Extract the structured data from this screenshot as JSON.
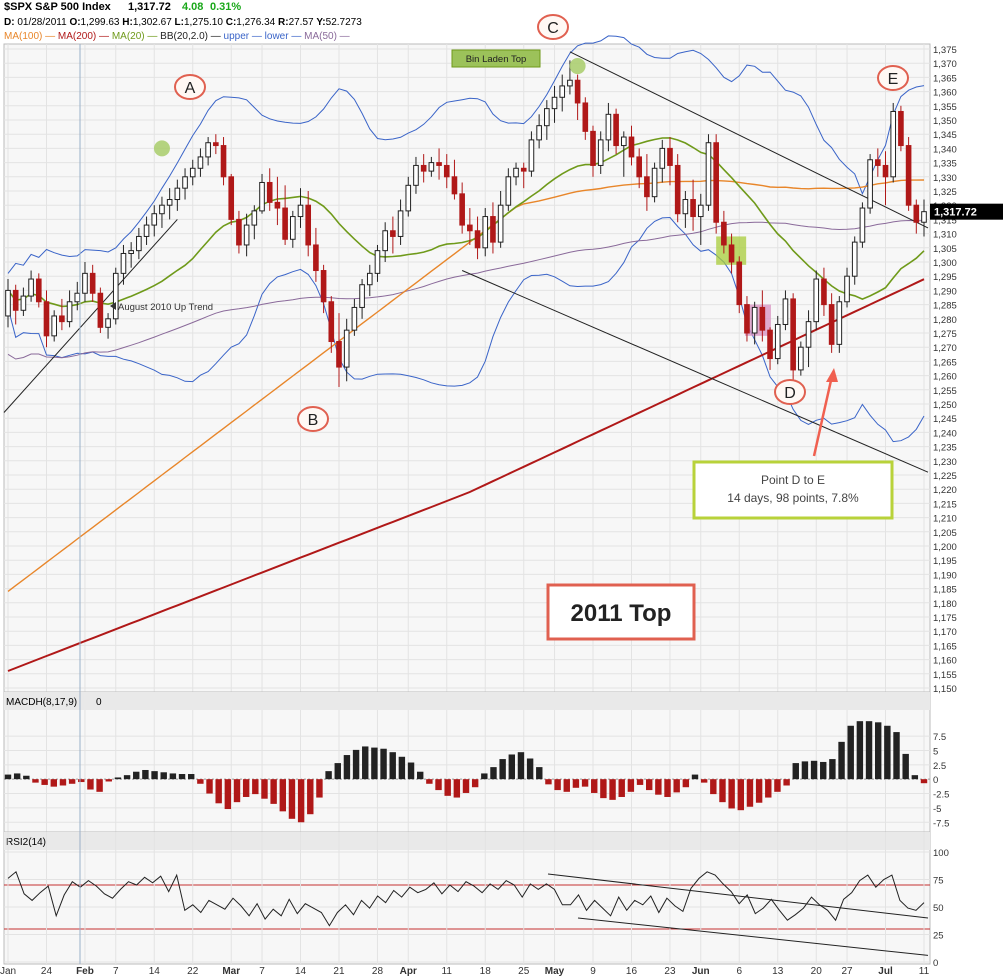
{
  "header": {
    "symbol": "$SPX S&P 500 Index",
    "last": "1,317.72",
    "change": "4.08",
    "change_pct": "0.31%",
    "ohlc_line": [
      {
        "k": "D:",
        "v": " 01/28/2011 "
      },
      {
        "k": "O:",
        "v": "1,299.63 "
      },
      {
        "k": "H:",
        "v": "1,302.67 "
      },
      {
        "k": "L:",
        "v": "1,275.10 "
      },
      {
        "k": "C:",
        "v": "1,276.34 "
      },
      {
        "k": "R:",
        "v": "27.57 "
      },
      {
        "k": "Y:",
        "v": "52.7273"
      }
    ],
    "legend": [
      {
        "label": "MA(100)",
        "color": "#e8862a"
      },
      {
        "label": "MA(200)",
        "color": "#b01818"
      },
      {
        "label": "MA(20)",
        "color": "#6f9a1a"
      },
      {
        "label": "BB(20,2.0)",
        "color": "#222222"
      },
      {
        "label": "upper",
        "color": "#3a64c8"
      },
      {
        "label": "lower",
        "color": "#3a64c8"
      },
      {
        "label": "MA(50)",
        "color": "#8a6a9a"
      }
    ]
  },
  "colors": {
    "up": "#222222",
    "down": "#b01818",
    "ma20": "#6f9a1a",
    "ma50": "#8a6a9a",
    "ma100": "#e8862a",
    "ma200": "#b01818",
    "bb": "#3a64c8",
    "grid": "#e3e3e3",
    "panel_bg": "#f7f7f7",
    "note_border": "#b8d23a",
    "title_border": "#e06050",
    "marker_border": "#e06050"
  },
  "chart_data": [
    {
      "type": "candlestick",
      "title": "$SPX S&P 500 Index",
      "ylim": [
        1150,
        1375
      ],
      "y_ticks": [
        1150,
        1155,
        1160,
        1165,
        1170,
        1175,
        1180,
        1185,
        1190,
        1195,
        1200,
        1205,
        1210,
        1215,
        1220,
        1225,
        1230,
        1235,
        1240,
        1245,
        1250,
        1255,
        1260,
        1265,
        1270,
        1275,
        1280,
        1285,
        1290,
        1295,
        1300,
        1305,
        1310,
        1315,
        1320,
        1325,
        1330,
        1335,
        1340,
        1345,
        1350,
        1355,
        1360,
        1365,
        1370,
        1375
      ],
      "x_tick_labels": [
        "Jan",
        "24",
        "Feb",
        "7",
        "14",
        "22",
        "Mar",
        "7",
        "14",
        "21",
        "28",
        "Apr",
        "11",
        "18",
        "25",
        "May",
        "9",
        "16",
        "23",
        "Jun",
        "6",
        "13",
        "20",
        "27",
        "Jul",
        "11"
      ],
      "bold_ticks": [
        "Feb",
        "Mar",
        "Apr",
        "May",
        "Jun",
        "Jul"
      ],
      "last_value_label": "1,317.72",
      "last_value": 1317.72,
      "candles": [
        [
          1281,
          1294,
          1277,
          1290
        ],
        [
          1290,
          1292,
          1278,
          1283
        ],
        [
          1283,
          1291,
          1281,
          1288
        ],
        [
          1288,
          1297,
          1286,
          1294
        ],
        [
          1294,
          1296,
          1284,
          1286
        ],
        [
          1286,
          1290,
          1270,
          1274
        ],
        [
          1274,
          1283,
          1272,
          1281
        ],
        [
          1281,
          1287,
          1276,
          1279
        ],
        [
          1279,
          1290,
          1277,
          1286
        ],
        [
          1286,
          1293,
          1283,
          1289
        ],
        [
          1289,
          1300,
          1286,
          1296
        ],
        [
          1296,
          1299,
          1286,
          1289
        ],
        [
          1289,
          1291,
          1275,
          1277
        ],
        [
          1277,
          1282,
          1273,
          1280
        ],
        [
          1280,
          1298,
          1278,
          1296
        ],
        [
          1296,
          1306,
          1292,
          1303
        ],
        [
          1303,
          1307,
          1298,
          1304
        ],
        [
          1304,
          1312,
          1301,
          1309
        ],
        [
          1309,
          1316,
          1306,
          1313
        ],
        [
          1313,
          1320,
          1309,
          1317
        ],
        [
          1317,
          1323,
          1312,
          1320
        ],
        [
          1320,
          1326,
          1315,
          1322
        ],
        [
          1322,
          1329,
          1318,
          1326
        ],
        [
          1326,
          1333,
          1322,
          1330
        ],
        [
          1330,
          1336,
          1327,
          1333
        ],
        [
          1333,
          1340,
          1330,
          1337
        ],
        [
          1337,
          1344,
          1334,
          1342
        ],
        [
          1342,
          1345,
          1338,
          1341
        ],
        [
          1341,
          1344,
          1327,
          1330
        ],
        [
          1330,
          1331,
          1313,
          1315
        ],
        [
          1315,
          1318,
          1303,
          1306
        ],
        [
          1306,
          1317,
          1302,
          1313
        ],
        [
          1313,
          1320,
          1308,
          1318
        ],
        [
          1318,
          1331,
          1317,
          1328
        ],
        [
          1328,
          1333,
          1318,
          1321
        ],
        [
          1321,
          1330,
          1313,
          1319
        ],
        [
          1319,
          1327,
          1306,
          1308
        ],
        [
          1308,
          1318,
          1305,
          1316
        ],
        [
          1316,
          1326,
          1312,
          1320
        ],
        [
          1320,
          1325,
          1302,
          1306
        ],
        [
          1306,
          1312,
          1293,
          1297
        ],
        [
          1297,
          1299,
          1282,
          1286
        ],
        [
          1286,
          1288,
          1268,
          1272
        ],
        [
          1272,
          1282,
          1256,
          1263
        ],
        [
          1263,
          1280,
          1258,
          1276
        ],
        [
          1276,
          1287,
          1274,
          1284
        ],
        [
          1284,
          1294,
          1280,
          1292
        ],
        [
          1292,
          1299,
          1288,
          1296
        ],
        [
          1296,
          1306,
          1293,
          1304
        ],
        [
          1304,
          1314,
          1300,
          1311
        ],
        [
          1311,
          1316,
          1303,
          1309
        ],
        [
          1309,
          1322,
          1306,
          1318
        ],
        [
          1318,
          1330,
          1316,
          1327
        ],
        [
          1327,
          1337,
          1324,
          1334
        ],
        [
          1334,
          1338,
          1328,
          1332
        ],
        [
          1332,
          1337,
          1330,
          1335
        ],
        [
          1335,
          1340,
          1329,
          1334
        ],
        [
          1334,
          1338,
          1326,
          1330
        ],
        [
          1330,
          1336,
          1322,
          1324
        ],
        [
          1324,
          1328,
          1310,
          1313
        ],
        [
          1313,
          1319,
          1306,
          1311
        ],
        [
          1311,
          1316,
          1301,
          1305
        ],
        [
          1305,
          1319,
          1302,
          1316
        ],
        [
          1316,
          1321,
          1303,
          1307
        ],
        [
          1307,
          1325,
          1305,
          1320
        ],
        [
          1320,
          1333,
          1318,
          1330
        ],
        [
          1330,
          1335,
          1327,
          1333
        ],
        [
          1333,
          1335,
          1326,
          1332
        ],
        [
          1332,
          1346,
          1330,
          1343
        ],
        [
          1343,
          1352,
          1340,
          1348
        ],
        [
          1348,
          1357,
          1343,
          1354
        ],
        [
          1354,
          1362,
          1349,
          1358
        ],
        [
          1358,
          1366,
          1353,
          1362
        ],
        [
          1362,
          1371,
          1359,
          1364
        ],
        [
          1364,
          1366,
          1350,
          1356
        ],
        [
          1356,
          1358,
          1343,
          1346
        ],
        [
          1346,
          1348,
          1330,
          1334
        ],
        [
          1334,
          1346,
          1331,
          1343
        ],
        [
          1343,
          1356,
          1339,
          1352
        ],
        [
          1352,
          1354,
          1338,
          1341
        ],
        [
          1341,
          1346,
          1330,
          1344
        ],
        [
          1344,
          1348,
          1334,
          1337
        ],
        [
          1337,
          1340,
          1326,
          1330
        ],
        [
          1330,
          1338,
          1318,
          1323
        ],
        [
          1323,
          1335,
          1321,
          1333
        ],
        [
          1333,
          1343,
          1328,
          1340
        ],
        [
          1340,
          1344,
          1327,
          1334
        ],
        [
          1334,
          1338,
          1314,
          1317
        ],
        [
          1317,
          1325,
          1312,
          1322
        ],
        [
          1322,
          1329,
          1311,
          1316
        ],
        [
          1316,
          1324,
          1306,
          1320
        ],
        [
          1320,
          1345,
          1318,
          1342
        ],
        [
          1342,
          1345,
          1310,
          1314
        ],
        [
          1314,
          1318,
          1303,
          1306
        ],
        [
          1306,
          1310,
          1296,
          1300
        ],
        [
          1300,
          1302,
          1282,
          1285
        ],
        [
          1285,
          1288,
          1272,
          1275
        ],
        [
          1275,
          1286,
          1271,
          1284
        ],
        [
          1284,
          1290,
          1272,
          1276
        ],
        [
          1276,
          1277,
          1262,
          1266
        ],
        [
          1266,
          1281,
          1264,
          1278
        ],
        [
          1278,
          1290,
          1276,
          1287
        ],
        [
          1287,
          1289,
          1258,
          1262
        ],
        [
          1262,
          1272,
          1260,
          1270
        ],
        [
          1270,
          1283,
          1263,
          1279
        ],
        [
          1279,
          1297,
          1276,
          1294
        ],
        [
          1294,
          1298,
          1281,
          1285
        ],
        [
          1285,
          1289,
          1268,
          1271
        ],
        [
          1271,
          1288,
          1268,
          1286
        ],
        [
          1286,
          1298,
          1284,
          1295
        ],
        [
          1295,
          1309,
          1292,
          1307
        ],
        [
          1307,
          1321,
          1305,
          1319
        ],
        [
          1319,
          1338,
          1317,
          1336
        ],
        [
          1336,
          1340,
          1330,
          1334
        ],
        [
          1334,
          1339,
          1320,
          1330
        ],
        [
          1330,
          1356,
          1328,
          1353
        ],
        [
          1353,
          1355,
          1339,
          1341
        ],
        [
          1341,
          1344,
          1318,
          1320
        ],
        [
          1320,
          1322,
          1310,
          1314
        ],
        [
          1314,
          1322,
          1309,
          1317.72
        ]
      ],
      "annotations": [
        {
          "label": "A",
          "type": "marker"
        },
        {
          "label": "B",
          "type": "marker"
        },
        {
          "label": "C",
          "type": "marker"
        },
        {
          "label": "D",
          "type": "marker"
        },
        {
          "label": "E",
          "type": "marker"
        },
        {
          "label": "Bin Laden Top",
          "type": "tag"
        },
        {
          "label": "August 2010 Up Trend",
          "type": "trendline-label"
        },
        {
          "label": "Point D to E",
          "type": "note"
        },
        {
          "label": "14 days, 98 points, 7.8%",
          "type": "note"
        },
        {
          "label": "2011 Top",
          "type": "title-box"
        }
      ]
    },
    {
      "type": "bar",
      "title": "MACDH(8,17,9)",
      "title_suffix": "0",
      "ylim": [
        -8.5,
        11
      ],
      "y_ticks": [
        -7.5,
        -5,
        -2.5,
        0,
        2.5,
        5,
        7.5
      ],
      "y_tick_labels": [
        "-7.5",
        "-5",
        "-2.5",
        "0",
        "2.5",
        "5",
        "7.5"
      ],
      "values": [
        0.8,
        1.0,
        0.6,
        -0.6,
        -1.0,
        -1.3,
        -1.1,
        -0.8,
        -0.5,
        -1.8,
        -2.2,
        -0.4,
        0.3,
        0.7,
        1.3,
        1.6,
        1.4,
        1.2,
        1.0,
        0.9,
        0.9,
        -0.8,
        -2.5,
        -4.2,
        -5.2,
        -4.0,
        -3.1,
        -2.6,
        -3.4,
        -4.3,
        -5.6,
        -6.9,
        -7.5,
        -6.1,
        -3.2,
        1.4,
        2.8,
        4.2,
        5.1,
        5.7,
        5.5,
        5.3,
        4.7,
        3.9,
        2.9,
        1.3,
        -0.8,
        -1.9,
        -2.9,
        -3.2,
        -2.4,
        -1.4,
        1.0,
        2.1,
        3.5,
        4.3,
        4.7,
        3.6,
        2.1,
        -0.9,
        -1.9,
        -2.2,
        -1.5,
        -1.3,
        -2.4,
        -3.3,
        -3.6,
        -3.1,
        -2.2,
        -1.0,
        -1.9,
        -2.7,
        -3.1,
        -2.3,
        -1.4,
        0.8,
        -0.6,
        -2.6,
        -4.0,
        -5.1,
        -5.4,
        -4.8,
        -4.1,
        -3.2,
        -2.2,
        -1.1,
        2.8,
        3.1,
        3.2,
        3.0,
        3.5,
        6.5,
        9.3,
        10.1,
        10.1,
        9.9,
        9.3,
        8.2,
        4.4,
        0.7,
        -0.7
      ]
    },
    {
      "type": "line",
      "title": "RSI2(14)",
      "ylim": [
        0,
        100
      ],
      "y_ticks": [
        0,
        25,
        50,
        75,
        100
      ],
      "y_tick_labels": [
        "0",
        "25",
        "50",
        "75",
        "100"
      ],
      "overbought": 70,
      "oversold": 30,
      "values": [
        76,
        82,
        62,
        56,
        63,
        69,
        42,
        61,
        73,
        68,
        74,
        69,
        62,
        58,
        66,
        73,
        70,
        77,
        72,
        78,
        64,
        79,
        47,
        52,
        45,
        56,
        52,
        48,
        58,
        51,
        42,
        53,
        39,
        48,
        42,
        57,
        44,
        53,
        49,
        45,
        33,
        45,
        52,
        43,
        56,
        49,
        60,
        54,
        65,
        59,
        68,
        63,
        66,
        72,
        62,
        70,
        64,
        73,
        69,
        63,
        71,
        66,
        74,
        70,
        59,
        71,
        66,
        71,
        66,
        52,
        52,
        61,
        47,
        56,
        49,
        42,
        59,
        47,
        56,
        52,
        60,
        45,
        58,
        51,
        46,
        67,
        76,
        82,
        79,
        71,
        64,
        53,
        61,
        44,
        49,
        57,
        47,
        38,
        43,
        49,
        59,
        52,
        47,
        38,
        57,
        63,
        74,
        79,
        68,
        75,
        79,
        56,
        49,
        47,
        54
      ]
    }
  ],
  "notes": {
    "point_d_to_e_line1": "Point D to E",
    "point_d_to_e_line2": "14 days, 98 points, 7.8%",
    "title_box": "2011 Top",
    "bin_laden": "Bin Laden Top",
    "uptrend": "August 2010 Up Trend",
    "markers": [
      "A",
      "B",
      "C",
      "D",
      "E"
    ]
  }
}
